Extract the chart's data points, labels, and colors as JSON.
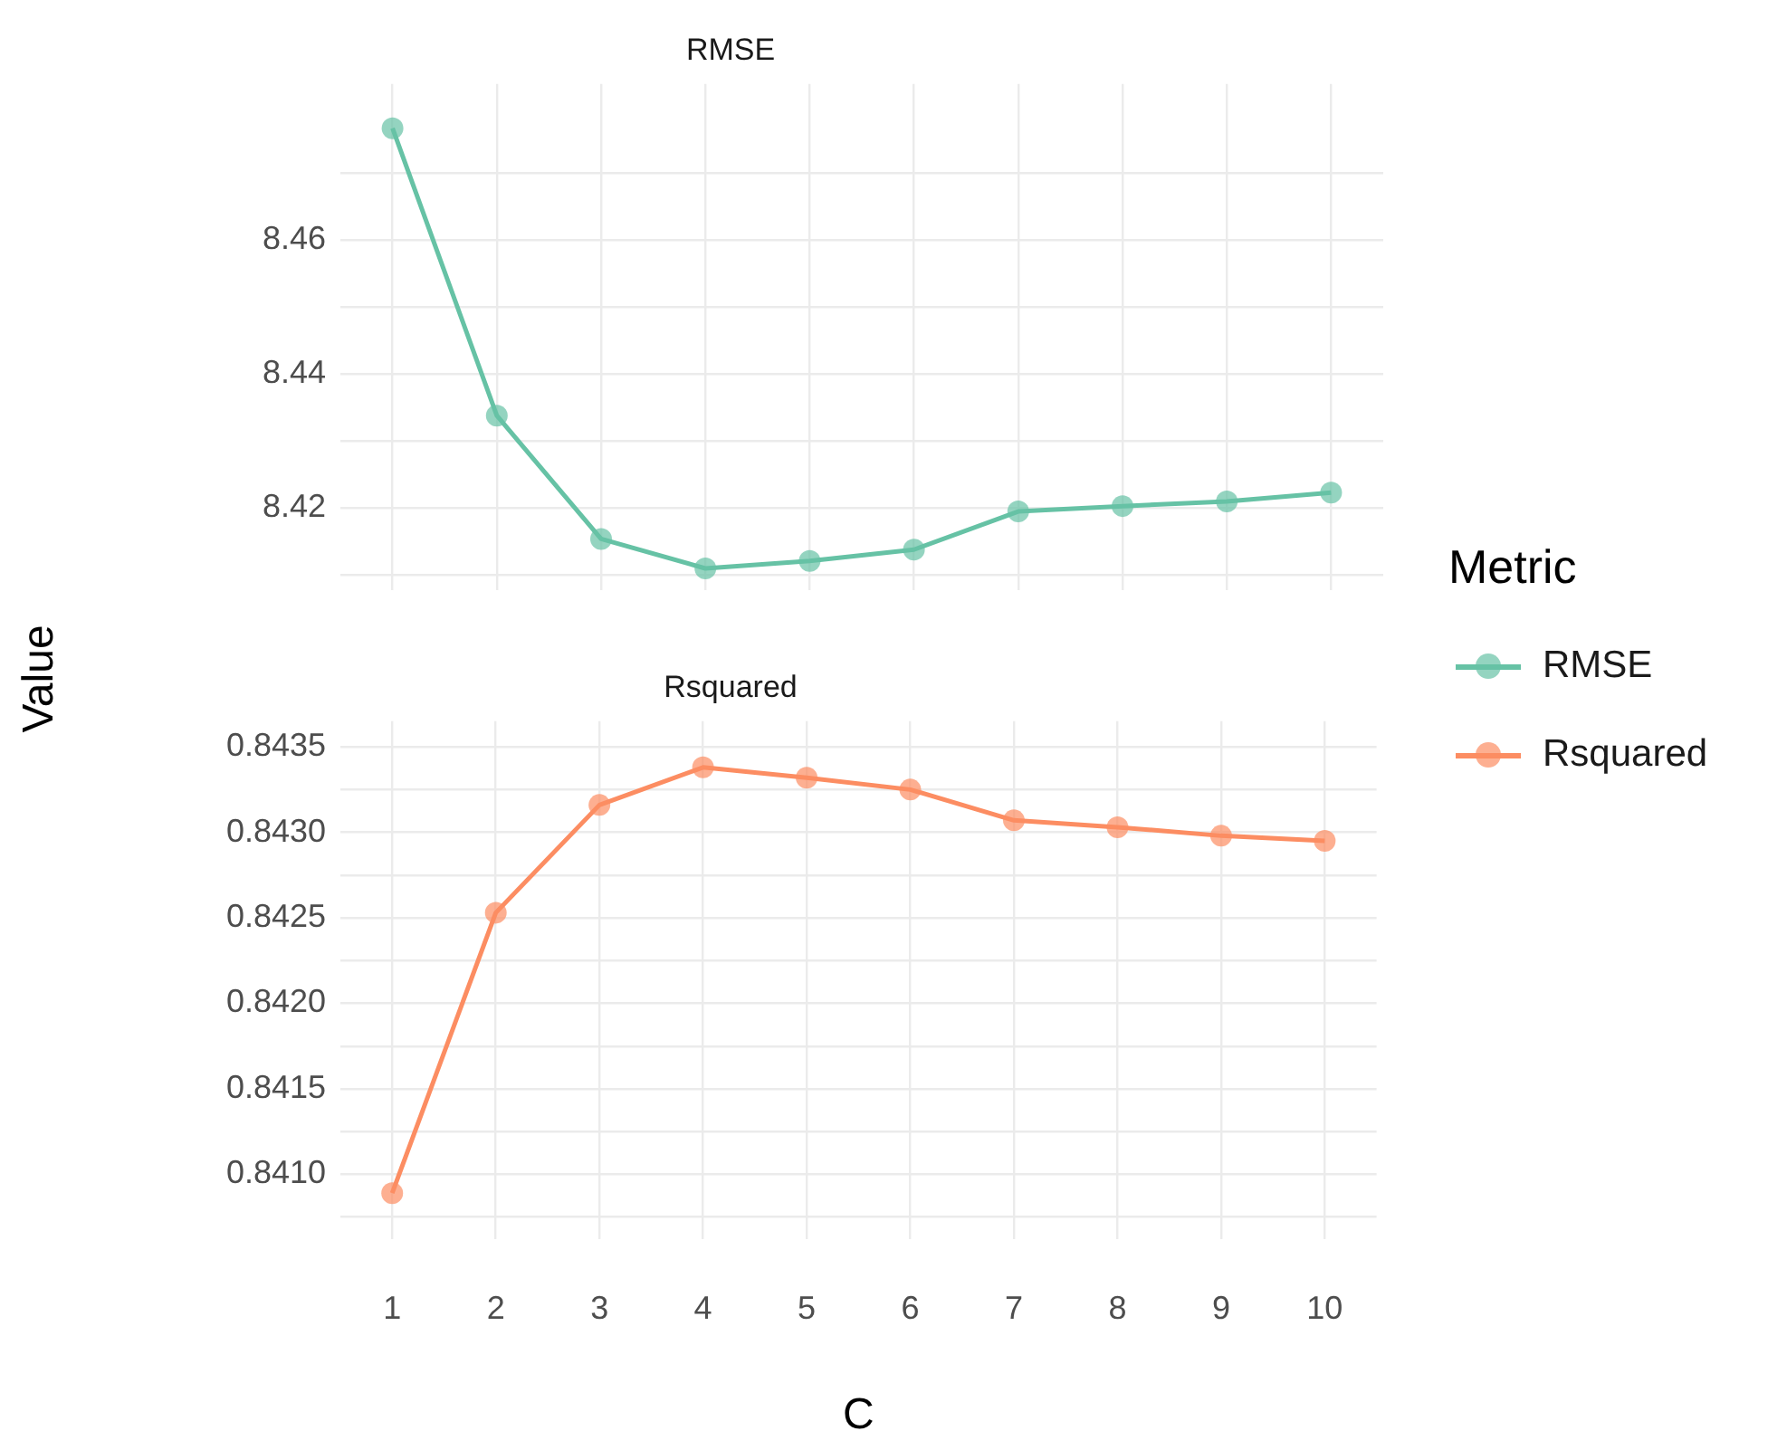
{
  "chart_data": [
    {
      "type": "line",
      "title": "RMSE",
      "ylabel": "Value",
      "legend_title": "Metric",
      "legend": "right",
      "grid": true,
      "marker": "circle",
      "tick_labels": "y",
      "categories": [
        "1",
        "2",
        "3",
        "4",
        "5",
        "6",
        "7",
        "8",
        "9",
        "10"
      ],
      "ylim": [
        8.4077,
        8.4833
      ],
      "yticks": [
        {
          "value": 8.41,
          "label": null
        },
        8.42,
        {
          "value": 8.43,
          "label": null
        },
        8.44,
        {
          "value": 8.45,
          "label": null
        },
        8.46,
        {
          "value": 8.47,
          "label": null
        }
      ],
      "series": [
        {
          "name": "RMSE",
          "color": "#66c2a5",
          "values": [
            8.4767,
            8.4338,
            8.4154,
            8.411,
            8.4121,
            8.4138,
            8.4195,
            8.4203,
            8.421,
            8.4223
          ]
        }
      ]
    },
    {
      "type": "line",
      "title": "Rsquared",
      "xlabel": "C",
      "legend": "right",
      "grid": true,
      "marker": "circle",
      "categories": [
        "1",
        "2",
        "3",
        "4",
        "5",
        "6",
        "7",
        "8",
        "9",
        "10"
      ],
      "ylim": [
        0.84062,
        0.84365
      ],
      "yticks": [
        {
          "value": 0.84075,
          "label": null
        },
        {
          "value": 0.841,
          "label": "0.8410"
        },
        {
          "value": 0.84125,
          "label": null
        },
        0.8415,
        {
          "value": 0.84175,
          "label": null
        },
        {
          "value": 0.842,
          "label": "0.8420"
        },
        {
          "value": 0.84225,
          "label": null
        },
        0.8425,
        {
          "value": 0.84275,
          "label": null
        },
        {
          "value": 0.843,
          "label": "0.8430"
        },
        {
          "value": 0.84325,
          "label": null
        },
        0.8435
      ],
      "series": [
        {
          "name": "Rsquared",
          "color": "#fc8d62",
          "values": [
            0.84089,
            0.84253,
            0.84316,
            0.84338,
            0.84332,
            0.84325,
            0.84307,
            0.84303,
            0.84298,
            0.84295
          ]
        }
      ]
    }
  ]
}
